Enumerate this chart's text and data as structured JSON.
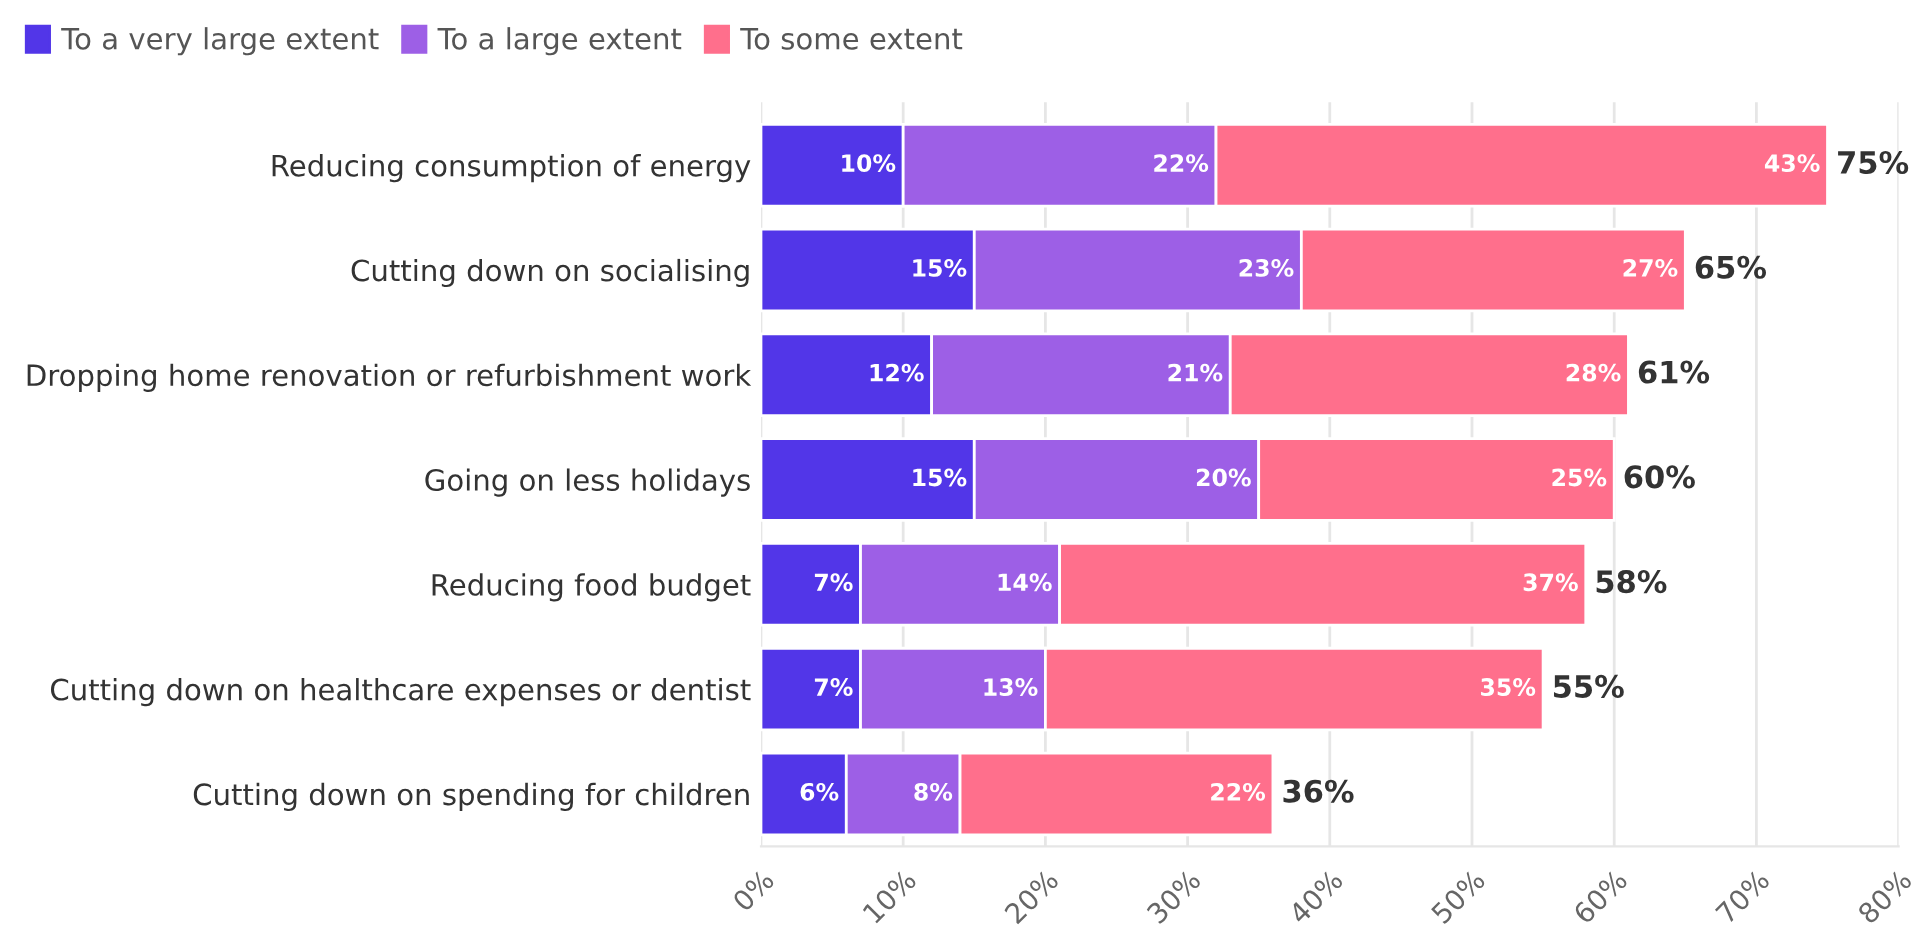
{
  "chart_data": {
    "type": "bar",
    "orientation": "horizontal",
    "stacked": true,
    "categories": [
      "Reducing consumption of energy",
      "Cutting down on socialising",
      "Dropping home renovation or refurbishment work",
      "Going on less holidays",
      "Reducing food budget",
      "Cutting down on healthcare expenses or dentist",
      "Cutting down on spending for children"
    ],
    "series": [
      {
        "name": "To a very large extent",
        "color": "#5236e8",
        "values": [
          10,
          15,
          12,
          15,
          7,
          7,
          6
        ],
        "value_labels": [
          "10%",
          "15%",
          "12%",
          "15%",
          "7%",
          "7%",
          "6%"
        ]
      },
      {
        "name": "To a large extent",
        "color": "#9d5fe6",
        "values": [
          22,
          23,
          21,
          20,
          14,
          13,
          8
        ],
        "value_labels": [
          "22%",
          "23%",
          "21%",
          "20%",
          "14%",
          "13%",
          "8%"
        ]
      },
      {
        "name": "To some extent",
        "color": "#ff6f8c",
        "values": [
          43,
          27,
          28,
          25,
          37,
          35,
          22
        ],
        "value_labels": [
          "43%",
          "27%",
          "28%",
          "25%",
          "37%",
          "35%",
          "22%"
        ]
      }
    ],
    "totals": [
      "75%",
      "65%",
      "61%",
      "60%",
      "58%",
      "55%",
      "36%"
    ],
    "xlim": [
      0,
      80
    ],
    "xticks": [
      {
        "value": 0,
        "label": "0%"
      },
      {
        "value": 10,
        "label": "10%"
      },
      {
        "value": 20,
        "label": "20%"
      },
      {
        "value": 30,
        "label": "30%"
      },
      {
        "value": 40,
        "label": "40%"
      },
      {
        "value": 50,
        "label": "50%"
      },
      {
        "value": 60,
        "label": "60%"
      },
      {
        "value": 70,
        "label": "70%"
      },
      {
        "value": 80,
        "label": "80%"
      }
    ],
    "grid": "x",
    "legend": "top left"
  }
}
